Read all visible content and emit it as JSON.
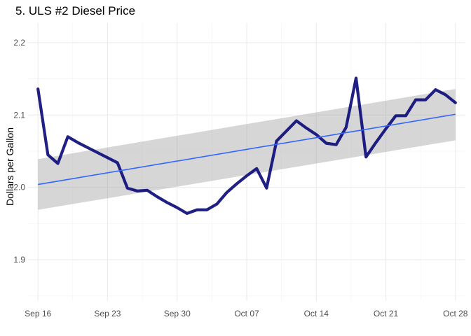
{
  "chart_data": {
    "type": "line",
    "title": "5. ULS #2 Diesel Price",
    "xlabel": "",
    "ylabel": "Dollars per Gallon",
    "x_ticks": [
      "Sep 16",
      "Sep 23",
      "Sep 30",
      "Oct 07",
      "Oct 14",
      "Oct 21",
      "Oct 28"
    ],
    "y_ticks": [
      1.9,
      2.0,
      2.1,
      2.2
    ],
    "y_tick_labels": [
      "1.9",
      "2.0",
      "2.1",
      "2.2"
    ],
    "ylim": [
      1.843,
      2.227
    ],
    "x_range": [
      "Sep 15",
      "Oct 29"
    ],
    "grid": true,
    "legend": "none",
    "series": [
      {
        "color": "#0d0d7a",
        "x": [
          "Sep 16",
          "Sep 17",
          "Sep 18",
          "Sep 19",
          "Sep 20",
          "Sep 21",
          "Sep 22",
          "Sep 23",
          "Sep 24",
          "Sep 25",
          "Sep 26",
          "Sep 27",
          "Sep 28",
          "Sep 29",
          "Sep 30",
          "Oct 01",
          "Oct 02",
          "Oct 03",
          "Oct 04",
          "Oct 05",
          "Oct 06",
          "Oct 07",
          "Oct 08",
          "Oct 09",
          "Oct 10",
          "Oct 11",
          "Oct 12",
          "Oct 13",
          "Oct 14",
          "Oct 15",
          "Oct 16",
          "Oct 17",
          "Oct 18",
          "Oct 19",
          "Oct 20",
          "Oct 21",
          "Oct 22",
          "Oct 23",
          "Oct 24",
          "Oct 25",
          "Oct 26",
          "Oct 27",
          "Oct 28"
        ],
        "values": [
          2.136,
          2.045,
          2.033,
          2.07,
          2.062,
          2.055,
          2.048,
          2.041,
          2.034,
          1.999,
          1.995,
          1.996,
          1.987,
          1.979,
          1.972,
          1.964,
          1.969,
          1.969,
          1.977,
          1.993,
          2.005,
          2.016,
          2.026,
          1.999,
          2.064,
          2.078,
          2.092,
          2.082,
          2.073,
          2.061,
          2.059,
          2.083,
          2.151,
          2.042,
          2.062,
          2.081,
          2.099,
          2.099,
          2.121,
          2.121,
          2.135,
          2.128,
          2.117
        ]
      }
    ],
    "trend": {
      "method": "linear",
      "color": "#3366ff",
      "band_color": "#999999",
      "start": {
        "x": "Sep 16",
        "y": 2.004,
        "lower": 1.969,
        "upper": 2.039
      },
      "end": {
        "x": "Oct 28",
        "y": 2.101,
        "lower": 2.065,
        "upper": 2.136
      }
    }
  }
}
